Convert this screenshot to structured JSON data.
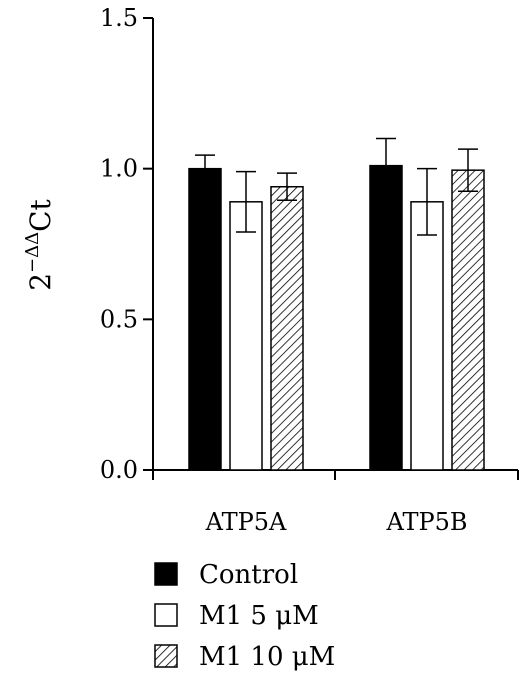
{
  "chart_data": {
    "type": "bar",
    "title": "",
    "xlabel": "",
    "ylabel": {
      "base": "2",
      "superscript": "−ΔΔ",
      "suffix": "Ct"
    },
    "ylim": [
      0,
      1.5
    ],
    "yticks": [
      0,
      0.5,
      1.0,
      1.5
    ],
    "ytick_labels": [
      "0.0",
      "0.5",
      "1.0",
      "1.5"
    ],
    "categories": [
      "ATP5A",
      "ATP5B"
    ],
    "series": [
      {
        "name": "Control",
        "fill": "solid",
        "color": "#000000",
        "values": [
          1.0,
          1.01
        ],
        "errors": [
          0.045,
          0.09
        ]
      },
      {
        "name": "M1 5 μM",
        "fill": "open",
        "color": "#ffffff",
        "values": [
          0.89,
          0.89
        ],
        "errors": [
          0.1,
          0.11
        ]
      },
      {
        "name": "M1 10 μM",
        "fill": "hatched",
        "color": "#000000",
        "values": [
          0.94,
          0.995
        ],
        "errors": [
          0.045,
          0.07
        ]
      }
    ],
    "legend_position": "bottom-left",
    "grid": false
  }
}
